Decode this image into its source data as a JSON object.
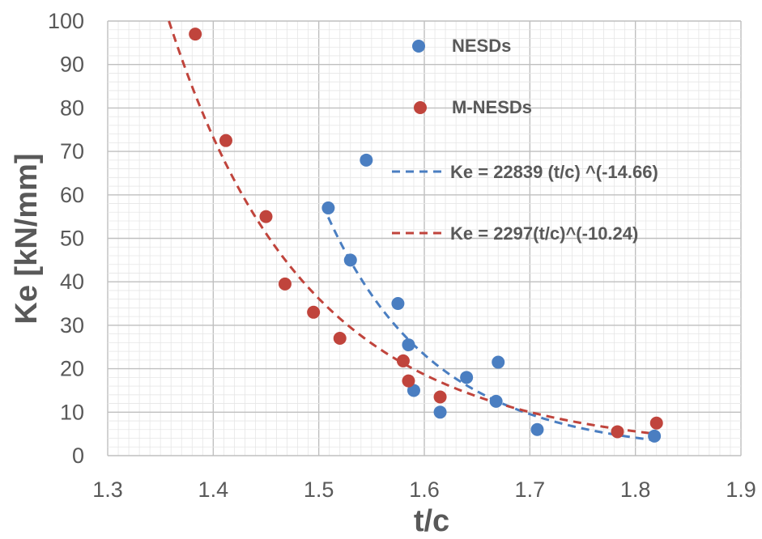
{
  "chart_data": {
    "type": "scatter",
    "xlabel": "t/c",
    "ylabel": "Ke [kN/mm]",
    "xlim": [
      1.3,
      1.9
    ],
    "ylim": [
      0,
      100
    ],
    "x_ticks": [
      "1.3",
      "1.4",
      "1.5",
      "1.6",
      "1.7",
      "1.8",
      "1.9"
    ],
    "y_ticks": [
      "0",
      "10",
      "20",
      "30",
      "40",
      "50",
      "60",
      "70",
      "80",
      "90",
      "100"
    ],
    "grid": true,
    "legend_position": "right",
    "series": [
      {
        "name": "NESDs",
        "color": "#4a7ec1",
        "x": [
          1.509,
          1.53,
          1.545,
          1.575,
          1.585,
          1.59,
          1.615,
          1.64,
          1.668,
          1.67,
          1.707,
          1.818
        ],
        "y": [
          57,
          45,
          68,
          35,
          25.5,
          15,
          10,
          18,
          12.5,
          21.5,
          6,
          4.5
        ]
      },
      {
        "name": "M-NESDs",
        "color": "#c0443c",
        "x": [
          1.383,
          1.412,
          1.45,
          1.468,
          1.495,
          1.52,
          1.58,
          1.585,
          1.615,
          1.783,
          1.82
        ],
        "y": [
          97,
          72.5,
          55,
          39.5,
          33,
          27,
          21.8,
          17.2,
          13.5,
          5.5,
          7.5
        ]
      }
    ],
    "trendlines": [
      {
        "label": "Ke = 22839 (t/c) ^(-14.66)",
        "color": "#4a7ec1",
        "coefficient": 22839,
        "exponent": -14.66,
        "x_range": [
          1.509,
          1.818
        ]
      },
      {
        "label": "Ke = 2297(t/c)^(-10.24)",
        "color": "#c0443c",
        "coefficient": 2297,
        "exponent": -10.24,
        "x_range": [
          1.358,
          1.82
        ]
      }
    ]
  }
}
